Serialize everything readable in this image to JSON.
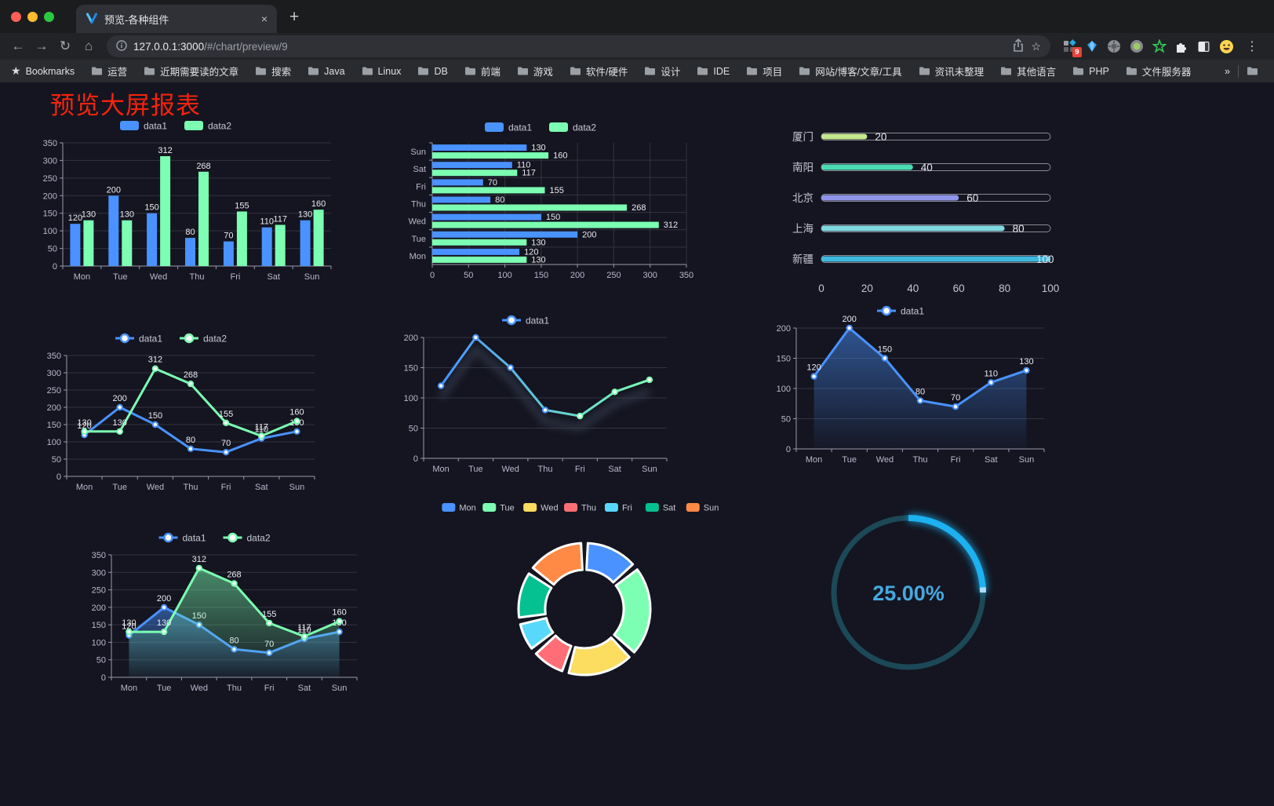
{
  "browser": {
    "traffic_lights": [
      "#ff5f57",
      "#febc2e",
      "#2ac840"
    ],
    "tab": {
      "title": "预览-各种组件",
      "close_glyph": "×",
      "new_tab_glyph": "+"
    },
    "toolbar": {
      "back_glyph": "←",
      "forward_glyph": "→",
      "reload_glyph": "↻",
      "home_glyph": "⌂",
      "url_host": "127.0.0.1:3000",
      "url_path": "/#/chart/preview/9",
      "bookmark_star_glyph": "☆",
      "menu_glyph": "⋮",
      "extension_badge": "9"
    },
    "bookmarks_bar": {
      "label": "Bookmarks",
      "folders": [
        "运营",
        "近期需要读的文章",
        "搜索",
        "Java",
        "Linux",
        "DB",
        "前端",
        "游戏",
        "软件/硬件",
        "设计",
        "IDE",
        "项目",
        "网站/博客/文章/工具",
        "资讯未整理",
        "其他语言",
        "PHP",
        "文件服务器"
      ],
      "overflow_glyph": "»",
      "other_bookmarks": "其他书签"
    }
  },
  "page": {
    "title": "预览大屏报表",
    "title_color": "#f5230c",
    "background": "#141520"
  },
  "palette": {
    "axis": "#9a99ad",
    "axis_text": "#b9b8ce",
    "grid": "#33333f",
    "value_label": "#ebebf2",
    "data1": "#4992ff",
    "data2": "#7cffb2"
  },
  "chart_data": [
    {
      "id": "c1",
      "type": "bar",
      "categories": [
        "Mon",
        "Tue",
        "Wed",
        "Thu",
        "Fri",
        "Sat",
        "Sun"
      ],
      "series": [
        {
          "name": "data1",
          "color": "#4992ff",
          "values": [
            120,
            200,
            150,
            80,
            70,
            110,
            130
          ]
        },
        {
          "name": "data2",
          "color": "#7cffb2",
          "values": [
            130,
            130,
            312,
            268,
            155,
            117,
            160
          ]
        }
      ],
      "ylim": [
        0,
        350
      ],
      "ystep": 50,
      "legend": true,
      "show_labels": true
    },
    {
      "id": "c2",
      "type": "hbar",
      "categories": [
        "Sun",
        "Sat",
        "Fri",
        "Thu",
        "Wed",
        "Tue",
        "Mon"
      ],
      "series": [
        {
          "name": "data1",
          "color": "#4992ff",
          "values": [
            130,
            110,
            70,
            80,
            150,
            200,
            120
          ]
        },
        {
          "name": "data2",
          "color": "#7cffb2",
          "values": [
            160,
            117,
            155,
            268,
            312,
            130,
            130
          ]
        }
      ],
      "xlim": [
        0,
        350
      ],
      "xstep": 50,
      "legend": true,
      "show_labels": true
    },
    {
      "id": "c3",
      "type": "progress",
      "max": 100,
      "xticks": [
        0,
        20,
        40,
        60,
        80,
        100
      ],
      "rows": [
        {
          "label": "厦门",
          "value": 20,
          "color": "#c3e88d"
        },
        {
          "label": "南阳",
          "value": 40,
          "color": "#4adbb2"
        },
        {
          "label": "北京",
          "value": 60,
          "color": "#8f95e8"
        },
        {
          "label": "上海",
          "value": 80,
          "color": "#7fd8e0"
        },
        {
          "label": "新疆",
          "value": 100,
          "color": "#3fb8dd"
        }
      ]
    },
    {
      "id": "c4",
      "type": "line",
      "categories": [
        "Mon",
        "Tue",
        "Wed",
        "Thu",
        "Fri",
        "Sat",
        "Sun"
      ],
      "series": [
        {
          "name": "data1",
          "color": "#4992ff",
          "values": [
            120,
            200,
            150,
            80,
            70,
            110,
            130
          ]
        },
        {
          "name": "data2",
          "color": "#7cffb2",
          "values": [
            130,
            130,
            312,
            268,
            155,
            117,
            160
          ]
        }
      ],
      "ylim": [
        0,
        350
      ],
      "ystep": 50,
      "legend": true,
      "show_labels": true
    },
    {
      "id": "c5",
      "type": "line",
      "categories": [
        "Mon",
        "Tue",
        "Wed",
        "Thu",
        "Fri",
        "Sat",
        "Sun"
      ],
      "series": [
        {
          "name": "data1",
          "color": "#4992ff",
          "gradient": [
            "#4992ff",
            "#7cffb2"
          ],
          "shadow": true,
          "values": [
            120,
            200,
            150,
            80,
            70,
            110,
            130
          ]
        }
      ],
      "ylim": [
        0,
        200
      ],
      "ystep": 50,
      "legend": true,
      "show_labels": false
    },
    {
      "id": "c6",
      "type": "line",
      "categories": [
        "Mon",
        "Tue",
        "Wed",
        "Thu",
        "Fri",
        "Sat",
        "Sun"
      ],
      "series": [
        {
          "name": "data1",
          "color": "#4992ff",
          "area": true,
          "values": [
            120,
            200,
            150,
            80,
            70,
            110,
            130
          ]
        }
      ],
      "ylim": [
        0,
        200
      ],
      "ystep": 50,
      "legend": true,
      "show_labels": true
    },
    {
      "id": "c7",
      "type": "line",
      "categories": [
        "Mon",
        "Tue",
        "Wed",
        "Thu",
        "Fri",
        "Sat",
        "Sun"
      ],
      "series": [
        {
          "name": "data1",
          "color": "#4992ff",
          "area": true,
          "values": [
            120,
            200,
            150,
            80,
            70,
            110,
            130
          ]
        },
        {
          "name": "data2",
          "color": "#7cffb2",
          "area": true,
          "values": [
            130,
            130,
            312,
            268,
            155,
            117,
            160
          ]
        }
      ],
      "ylim": [
        0,
        350
      ],
      "ystep": 50,
      "legend": true,
      "show_labels": true
    },
    {
      "id": "c8",
      "type": "donut",
      "slices": [
        {
          "label": "Mon",
          "value": 120,
          "color": "#4992ff"
        },
        {
          "label": "Tue",
          "value": 200,
          "color": "#7cffb2"
        },
        {
          "label": "Wed",
          "value": 150,
          "color": "#fddd60"
        },
        {
          "label": "Thu",
          "value": 80,
          "color": "#ff6e76"
        },
        {
          "label": "Fri",
          "value": 70,
          "color": "#58d9f9"
        },
        {
          "label": "Sat",
          "value": 110,
          "color": "#05c091"
        },
        {
          "label": "Sun",
          "value": 130,
          "color": "#ff8a45"
        }
      ]
    },
    {
      "id": "c9",
      "type": "gauge",
      "value": 25,
      "display": "25.00%",
      "color": "#1cb1f0",
      "tip_color": "#aadcf7",
      "track": "#1c4857",
      "text_color": "#47a8e0"
    }
  ]
}
